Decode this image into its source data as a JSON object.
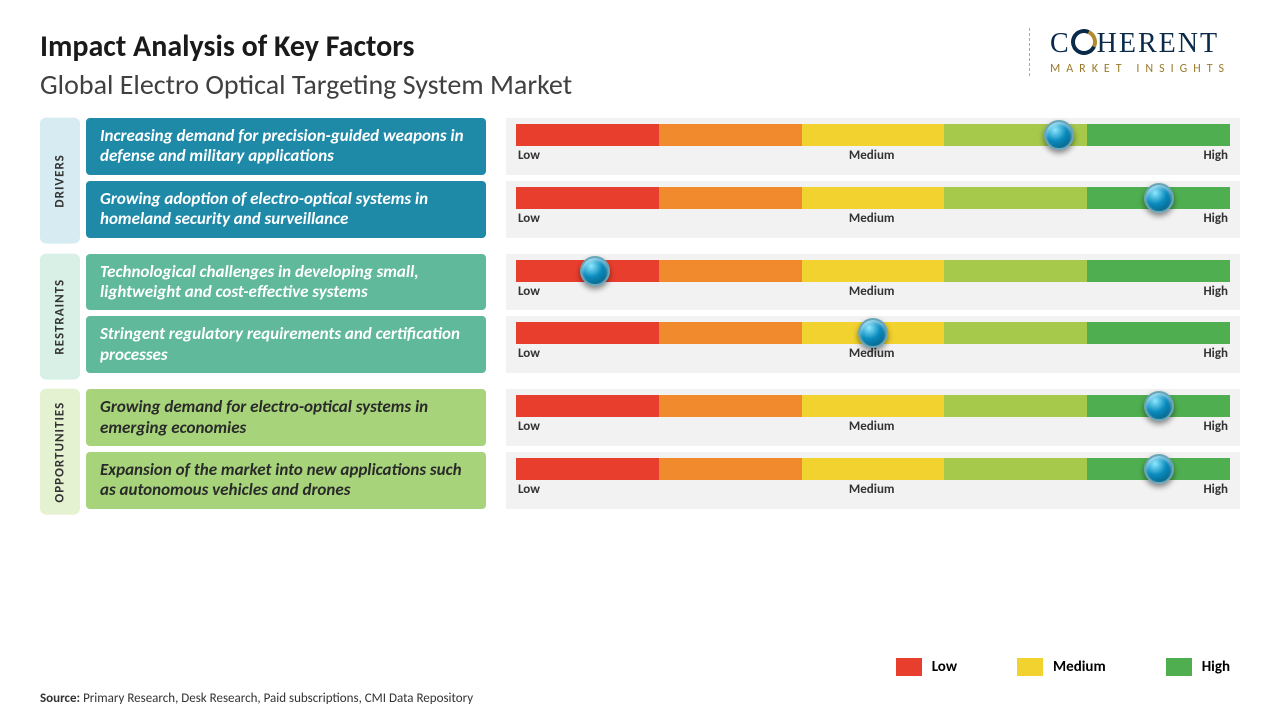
{
  "header": {
    "title": "Impact Analysis of Key Factors",
    "subtitle": "Global Electro Optical Targeting System Market",
    "logo_brand_pre": "C",
    "logo_brand_post": "HERENT",
    "logo_tagline": "MARKET INSIGHTS"
  },
  "scale": {
    "low": "Low",
    "medium": "Medium",
    "high": "High",
    "segment_colors": [
      "#e83e2e",
      "#f08a2c",
      "#f2d22e",
      "#a6c84b",
      "#4fae4f"
    ]
  },
  "categories": [
    {
      "label": "DRIVERS",
      "tab_bg": "#d6ecf2",
      "box_bg": "#1f8aa8",
      "box_text": "#ffffff",
      "rows": [
        {
          "text": "Increasing demand for precision-guided weapons in defense and military applications",
          "marker_pct": 76
        },
        {
          "text": "Growing adoption of electro-optical systems in homeland security and surveillance",
          "marker_pct": 90
        }
      ]
    },
    {
      "label": "RESTRAINTS",
      "tab_bg": "#d9f0e7",
      "box_bg": "#5fb99a",
      "box_text": "#ffffff",
      "rows": [
        {
          "text": "Technological challenges in developing small, lightweight and cost-effective systems",
          "marker_pct": 11
        },
        {
          "text": "Stringent regulatory requirements and certification processes",
          "marker_pct": 50
        }
      ]
    },
    {
      "label": "OPPORTUNITIES",
      "tab_bg": "#e5f2d2",
      "box_bg": "#a7d47a",
      "box_text": "#2a2a2a",
      "rows": [
        {
          "text": "Growing demand for electro-optical systems in emerging economies",
          "marker_pct": 90
        },
        {
          "text": "Expansion of the market into new applications such as autonomous vehicles and drones",
          "marker_pct": 90
        }
      ]
    }
  ],
  "legend": {
    "items": [
      {
        "label": "Low",
        "color": "#e83e2e"
      },
      {
        "label": "Medium",
        "color": "#f2d22e"
      },
      {
        "label": "High",
        "color": "#4fae4f"
      }
    ]
  },
  "source": {
    "prefix": "Source:",
    "text": " Primary Research, Desk Research, Paid subscriptions, CMI Data Repository"
  }
}
